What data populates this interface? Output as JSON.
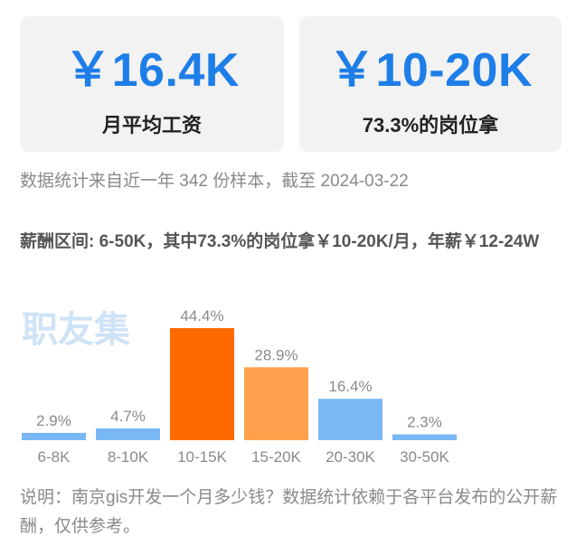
{
  "cards": [
    {
      "value": "￥16.4K",
      "label": "月平均工资"
    },
    {
      "value": "￥10-20K",
      "label": "73.3%的岗位拿"
    }
  ],
  "source_note": "数据统计来自近一年 342 份样本，截至 2024-03-22",
  "range_summary": "薪酬区间: 6-50K，其中73.3%的岗位拿￥10-20K/月，年薪￥12-24W",
  "watermark": "职友集",
  "footnote": "说明：南京gis开发一个月多少钱？数据统计依赖于各平台发布的公开薪酬，仅供参考。",
  "chart_data": {
    "type": "bar",
    "categories": [
      "6-8K",
      "8-10K",
      "10-15K",
      "15-20K",
      "20-30K",
      "30-50K"
    ],
    "values": [
      2.9,
      4.7,
      44.4,
      28.9,
      16.4,
      2.3
    ],
    "value_labels": [
      "2.9%",
      "4.7%",
      "44.4%",
      "28.9%",
      "16.4%",
      "2.3%"
    ],
    "colors": [
      "#7ab8f5",
      "#7ab8f5",
      "#ff6a00",
      "#ffa04d",
      "#7ab8f5",
      "#7ab8f5"
    ],
    "label_color": "#8a8a8a",
    "ylim": [
      0,
      44.4
    ]
  }
}
